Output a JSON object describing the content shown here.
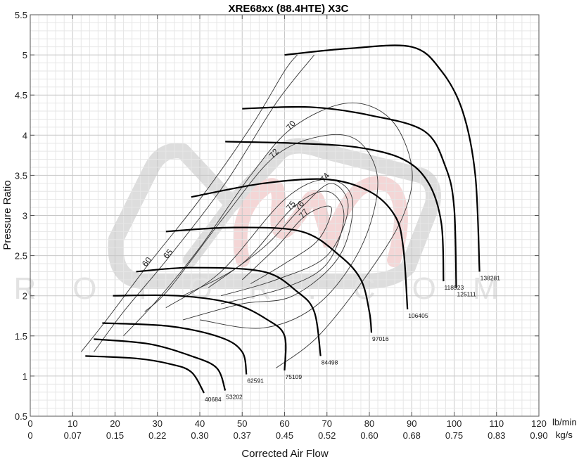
{
  "chart_data": {
    "type": "line",
    "title": "XRE68xx (88.4HTE)   X3C",
    "xlabel": "Corrected Air Flow",
    "ylabel": "Pressure Ratio",
    "xlim": [
      0,
      120
    ],
    "ylim": [
      0.5,
      5.5
    ],
    "grid": true,
    "x_ticks_primary": {
      "unit": "lb/min",
      "values": [
        "0",
        "10",
        "20",
        "30",
        "40",
        "50",
        "60",
        "70",
        "80",
        "90",
        "100",
        "110",
        "120"
      ]
    },
    "x_ticks_secondary": {
      "unit": "kg/s",
      "values": [
        "0",
        "0.07",
        "0.15",
        "0.22",
        "0.30",
        "0.37",
        "0.45",
        "0.52",
        "0.60",
        "0.68",
        "0.75",
        "0.83",
        "0.90"
      ]
    },
    "y_ticks": [
      "0.5",
      "1",
      "1.5",
      "2",
      "2.5",
      "3",
      "3.5",
      "4",
      "4.5",
      "5",
      "5.5"
    ],
    "watermark": {
      "text": "ROTOR COM",
      "color_gray": "#d9d9d9",
      "color_red": "#f4d6d6"
    },
    "speed_lines": [
      {
        "name": "40684",
        "points": [
          [
            13,
            1.25
          ],
          [
            25,
            1.22
          ],
          [
            33,
            1.15
          ],
          [
            38,
            1.05
          ],
          [
            41,
            0.79
          ]
        ]
      },
      {
        "name": "53202",
        "points": [
          [
            15,
            1.46
          ],
          [
            28,
            1.4
          ],
          [
            38,
            1.25
          ],
          [
            44,
            1.1
          ],
          [
            46,
            0.82
          ]
        ]
      },
      {
        "name": "62591",
        "points": [
          [
            17,
            1.66
          ],
          [
            33,
            1.62
          ],
          [
            45,
            1.48
          ],
          [
            50,
            1.3
          ],
          [
            51,
            1.02
          ]
        ]
      },
      {
        "name": "75109",
        "points": [
          [
            19.5,
            2.0
          ],
          [
            35,
            2.0
          ],
          [
            48,
            1.9
          ],
          [
            56,
            1.7
          ],
          [
            60,
            1.5
          ],
          [
            60,
            1.07
          ]
        ]
      },
      {
        "name": "84498",
        "points": [
          [
            25,
            2.3
          ],
          [
            38,
            2.35
          ],
          [
            55,
            2.3
          ],
          [
            63,
            2.05
          ],
          [
            67,
            1.8
          ],
          [
            68.5,
            1.25
          ]
        ]
      },
      {
        "name": "97016",
        "points": [
          [
            32,
            2.8
          ],
          [
            48,
            2.85
          ],
          [
            64,
            2.8
          ],
          [
            73,
            2.5
          ],
          [
            78,
            2.2
          ],
          [
            80,
            1.8
          ],
          [
            80.5,
            1.54
          ]
        ]
      },
      {
        "name": "106405",
        "points": [
          [
            38,
            3.23
          ],
          [
            55,
            3.4
          ],
          [
            70,
            3.45
          ],
          [
            80,
            3.3
          ],
          [
            86,
            3.0
          ],
          [
            88,
            2.6
          ],
          [
            89,
            1.83
          ]
        ]
      },
      {
        "name": "118923",
        "points": [
          [
            46,
            3.92
          ],
          [
            62,
            3.9
          ],
          [
            77,
            3.85
          ],
          [
            88,
            3.7
          ],
          [
            94,
            3.4
          ],
          [
            97,
            2.9
          ],
          [
            97.5,
            2.18
          ]
        ]
      },
      {
        "name": "125111",
        "points": [
          [
            50,
            4.33
          ],
          [
            66,
            4.35
          ],
          [
            80,
            4.25
          ],
          [
            93,
            4.05
          ],
          [
            98,
            3.6
          ],
          [
            100,
            3.1
          ],
          [
            100.5,
            2.1
          ]
        ]
      },
      {
        "name": "138281",
        "points": [
          [
            60,
            5.0
          ],
          [
            75,
            5.08
          ],
          [
            90,
            5.1
          ],
          [
            97,
            4.8
          ],
          [
            102,
            4.3
          ],
          [
            105,
            3.5
          ],
          [
            106,
            2.3
          ]
        ]
      }
    ],
    "efficiency_islands": [
      {
        "label": "60",
        "points": [
          [
            12,
            1.3
          ],
          [
            18,
            1.7
          ],
          [
            28,
            2.4
          ],
          [
            40,
            3.2
          ],
          [
            52,
            4.1
          ],
          [
            60,
            4.8
          ],
          [
            63,
            5.0
          ]
        ]
      },
      {
        "label": "65",
        "points": [
          [
            15,
            1.3
          ],
          [
            22,
            1.8
          ],
          [
            33,
            2.5
          ],
          [
            46,
            3.4
          ],
          [
            58,
            4.4
          ],
          [
            67,
            5.0
          ]
        ]
      },
      {
        "label": "70",
        "points": [
          [
            22,
            1.5
          ],
          [
            30,
            1.95
          ],
          [
            40,
            2.6
          ],
          [
            52,
            3.5
          ],
          [
            62,
            4.1
          ],
          [
            75,
            4.4
          ],
          [
            85,
            4.2
          ],
          [
            90,
            3.6
          ],
          [
            88,
            3.0
          ],
          [
            80,
            2.3
          ],
          [
            68,
            1.5
          ],
          [
            58,
            1.1
          ]
        ]
      },
      {
        "label": "72",
        "points": [
          [
            27,
            1.8
          ],
          [
            33,
            2.1
          ],
          [
            46,
            3.0
          ],
          [
            58,
            3.75
          ],
          [
            70,
            4.0
          ],
          [
            78,
            3.9
          ],
          [
            82,
            3.4
          ],
          [
            78,
            2.6
          ],
          [
            68,
            1.9
          ],
          [
            55,
            1.6
          ],
          [
            40,
            1.7
          ]
        ]
      },
      {
        "label": "74",
        "points": [
          [
            32,
            1.85
          ],
          [
            45,
            2.3
          ],
          [
            60,
            3.2
          ],
          [
            70,
            3.45
          ],
          [
            76,
            3.2
          ],
          [
            73,
            2.5
          ],
          [
            62,
            2.0
          ],
          [
            50,
            1.9
          ],
          [
            36,
            1.7
          ]
        ]
      },
      {
        "label": "75",
        "points": [
          [
            36,
            2.0
          ],
          [
            50,
            2.4
          ],
          [
            62,
            3.1
          ],
          [
            70,
            3.3
          ],
          [
            74,
            3.0
          ],
          [
            70,
            2.4
          ],
          [
            60,
            2.1
          ],
          [
            45,
            1.9
          ]
        ]
      },
      {
        "label": "76",
        "points": [
          [
            42,
            2.1
          ],
          [
            55,
            2.6
          ],
          [
            64,
            3.1
          ],
          [
            71,
            3.4
          ],
          [
            75,
            3.1
          ],
          [
            70,
            2.5
          ],
          [
            58,
            2.2
          ],
          [
            45,
            2.0
          ]
        ]
      },
      {
        "label": "77",
        "points": [
          [
            50,
            2.2
          ],
          [
            58,
            2.6
          ],
          [
            65,
            3.0
          ],
          [
            71,
            3.1
          ],
          [
            68,
            2.7
          ],
          [
            60,
            2.4
          ],
          [
            52,
            2.15
          ]
        ]
      }
    ]
  }
}
